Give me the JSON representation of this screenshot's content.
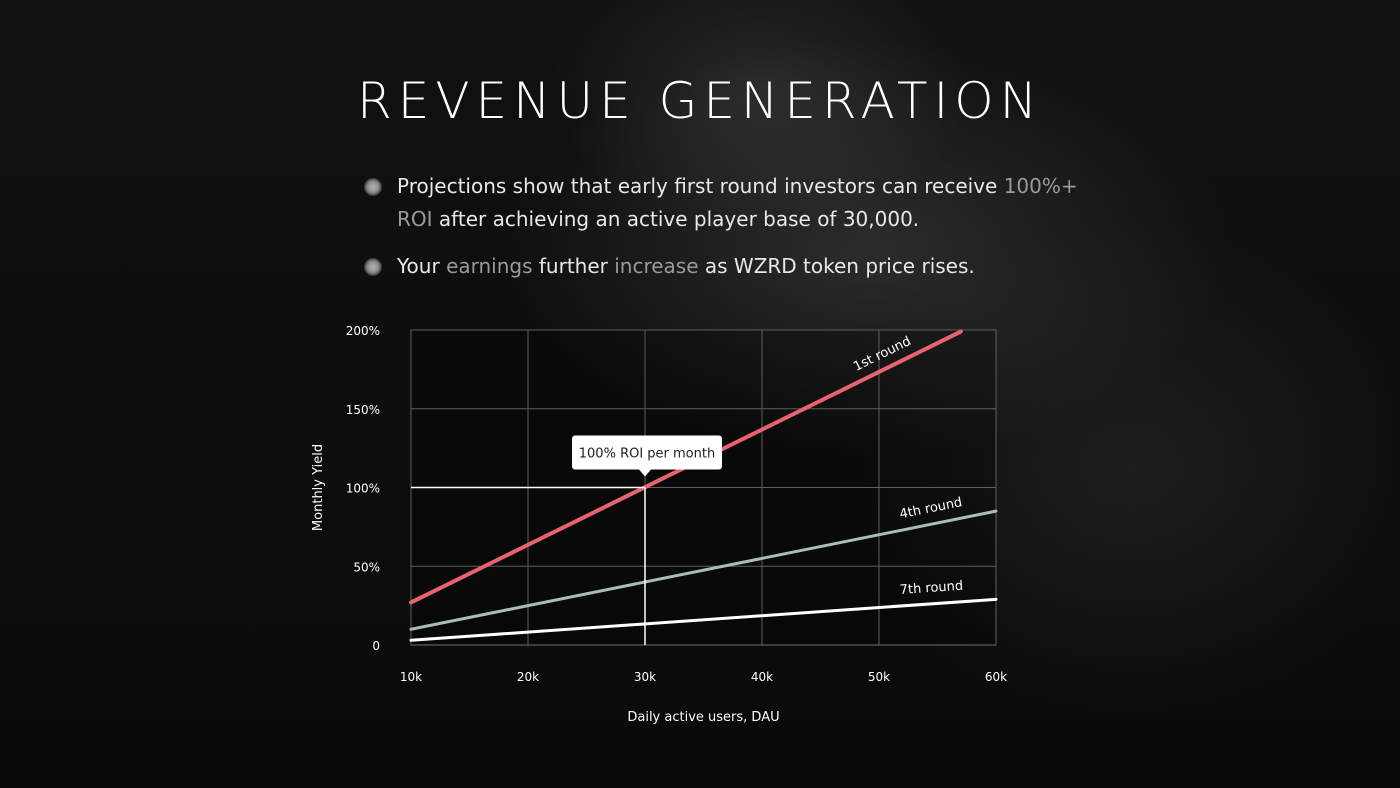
{
  "title": "REVENUE GENERATION",
  "bullets": [
    {
      "part1": "Projections show that early first round investors can receive",
      "highlight": "100%+ ROI",
      "part2": "after achieving an active player base of 30,000."
    },
    {
      "p1": "Your",
      "h1": "earnings",
      "p2": "further",
      "h2": "increase",
      "p3": "as WZRD token price rises."
    }
  ],
  "chart_data": {
    "type": "line",
    "xlabel": "Daily active users, DAU",
    "ylabel": "Monthly Yield",
    "x_ticks": [
      10,
      20,
      30,
      40,
      50,
      60
    ],
    "x_tick_labels": [
      "10k",
      "20k",
      "30k",
      "40k",
      "50k",
      "60k"
    ],
    "y_ticks": [
      0,
      50,
      100,
      150,
      200
    ],
    "y_tick_labels": [
      "0",
      "50%",
      "100%",
      "150%",
      "200%"
    ],
    "xlim": [
      10,
      60
    ],
    "ylim": [
      0,
      200
    ],
    "grid": true,
    "series": [
      {
        "name": "1st round",
        "color": "#e8626f",
        "x": [
          10,
          57
        ],
        "y": [
          27,
          199
        ]
      },
      {
        "name": "4th round",
        "color": "#a7bdb8",
        "x": [
          10,
          60
        ],
        "y": [
          10,
          85
        ]
      },
      {
        "name": "7th round",
        "color": "#ffffff",
        "x": [
          10,
          60
        ],
        "y": [
          3,
          29
        ]
      }
    ],
    "annotations": [
      {
        "text": "100% ROI per month",
        "x": 30,
        "y": 100
      }
    ]
  }
}
